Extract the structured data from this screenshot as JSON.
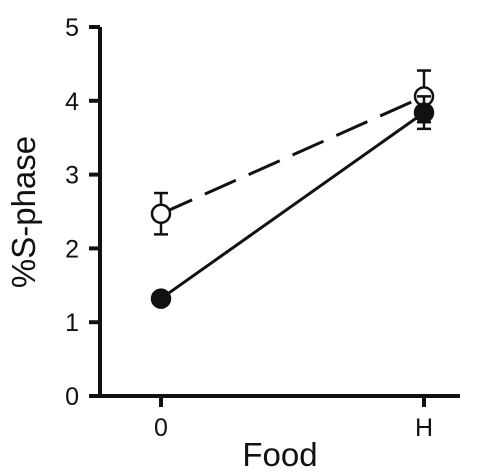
{
  "chart_data": {
    "type": "line",
    "title": "",
    "xlabel": "Food",
    "ylabel": "%S-phase",
    "categories": [
      "0",
      "H"
    ],
    "ylim": [
      0,
      5
    ],
    "yticks": [
      "0",
      "1",
      "2",
      "3",
      "4",
      "5"
    ],
    "grid": false,
    "legend": "none",
    "series": [
      {
        "marker": "open-circle",
        "line_style": "dashed",
        "values": [
          2.47,
          4.06
        ],
        "error": [
          0.28,
          0.35
        ],
        "color": "#111111"
      },
      {
        "marker": "filled-circle",
        "line_style": "solid",
        "values": [
          1.32,
          3.84
        ],
        "error": [
          0.08,
          0.22
        ],
        "color": "#111111"
      }
    ]
  }
}
